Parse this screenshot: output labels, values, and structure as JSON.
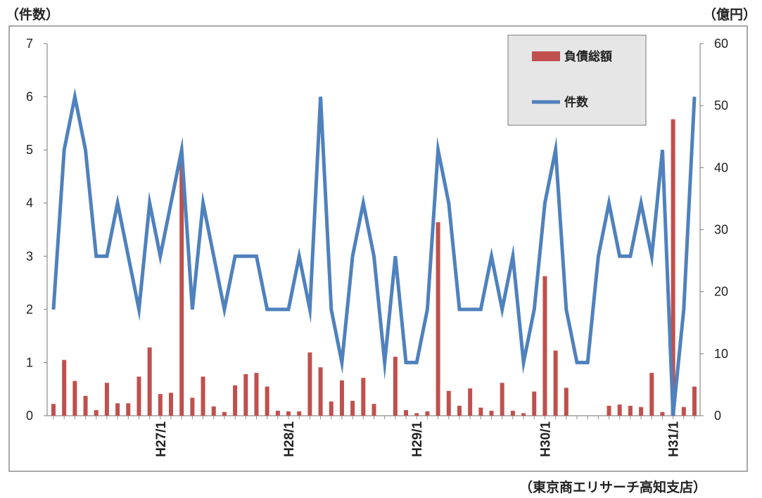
{
  "chart_data": {
    "type": "bar+line",
    "left_axis_title": "（件数）",
    "right_axis_title": "（億円）",
    "source": "（東京商エリサーチ高知支店）",
    "left_ylim": [
      0,
      7
    ],
    "left_ticks": [
      "0",
      "1",
      "2",
      "3",
      "4",
      "5",
      "6",
      "7"
    ],
    "right_ylim": [
      0,
      60
    ],
    "right_ticks": [
      "0",
      "10",
      "20",
      "30",
      "40",
      "50",
      "60"
    ],
    "x_tick_labels": [
      {
        "index": 10,
        "label": "H27/1"
      },
      {
        "index": 22,
        "label": "H28/1"
      },
      {
        "index": 34,
        "label": "H29/1"
      },
      {
        "index": 46,
        "label": "H30/1"
      },
      {
        "index": 58,
        "label": "H31/1"
      }
    ],
    "series": [
      {
        "name": "負債総額",
        "type": "bar",
        "axis": "right",
        "color": "#c0504d",
        "values": [
          1.9,
          9.0,
          5.6,
          3.2,
          0.9,
          5.3,
          2.0,
          2.0,
          6.3,
          11.0,
          3.5,
          3.7,
          42.0,
          2.9,
          6.3,
          1.5,
          0.6,
          4.9,
          6.7,
          6.9,
          4.7,
          0.8,
          0.7,
          0.7,
          10.2,
          7.8,
          2.3,
          5.7,
          2.4,
          6.1,
          1.9,
          0,
          9.5,
          0.9,
          0.4,
          0.7,
          31.2,
          4.0,
          1.6,
          4.4,
          1.3,
          0.8,
          5.3,
          0.8,
          0.4,
          3.9,
          22.5,
          10.5,
          4.5,
          0,
          0,
          0,
          1.6,
          1.8,
          1.6,
          1.4,
          6.9,
          0.6,
          47.8,
          1.4,
          4.7
        ]
      },
      {
        "name": "件数",
        "type": "line",
        "axis": "left",
        "color": "#4f81bd",
        "values": [
          2,
          5,
          6,
          5,
          3,
          3,
          4,
          3,
          2,
          4,
          3,
          4,
          5,
          2,
          4,
          3,
          2,
          3,
          3,
          3,
          2,
          2,
          2,
          3,
          2,
          6,
          2,
          1,
          3,
          4,
          3,
          1,
          3,
          1,
          1,
          2,
          5,
          4,
          2,
          2,
          2,
          3,
          2,
          3,
          1,
          2,
          4,
          5,
          2,
          1,
          1,
          3,
          4,
          3,
          3,
          4,
          3,
          5,
          0,
          2,
          6
        ]
      }
    ],
    "legend": {
      "placement": "top-right",
      "items": [
        "負債総額",
        "件数"
      ]
    },
    "grid": false
  }
}
